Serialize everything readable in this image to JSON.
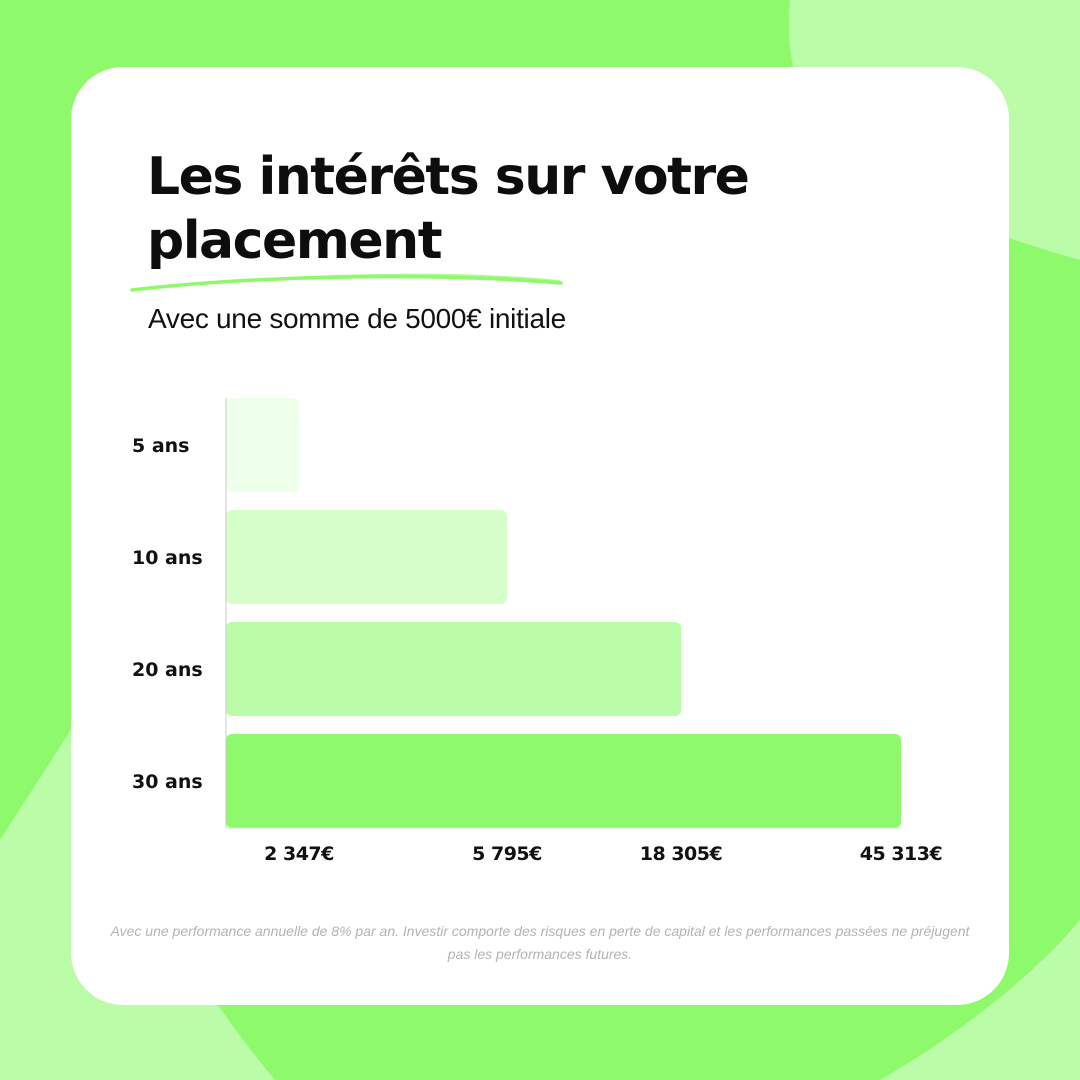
{
  "theme": {
    "background": "#8ef96a",
    "background_light": "#bafca8",
    "card": "#ffffff",
    "accent": "#8ef96a"
  },
  "header": {
    "title": "Les intérêts sur votre placement",
    "subtitle": "Avec une somme de 5000€ initiale"
  },
  "chart_data": {
    "type": "bar",
    "orientation": "horizontal",
    "title": "",
    "xlabel": "",
    "ylabel": "",
    "categories": [
      "5 ans",
      "10 ans",
      "20 ans",
      "30 ans"
    ],
    "values": [
      2347,
      5795,
      18305,
      45313
    ],
    "value_labels": [
      "2 347€",
      "5 795€",
      "18 305€",
      "45 313€"
    ],
    "bar_colors": [
      "#eeffea",
      "#d6fec9",
      "#bafca8",
      "#8ef96a"
    ],
    "grid": false,
    "legend": "none"
  },
  "footer": {
    "disclaimer": "Avec une performance annuelle de 8% par an. Investir comporte des risques en perte de capital et les performances passées ne préjugent pas les performances futures."
  }
}
